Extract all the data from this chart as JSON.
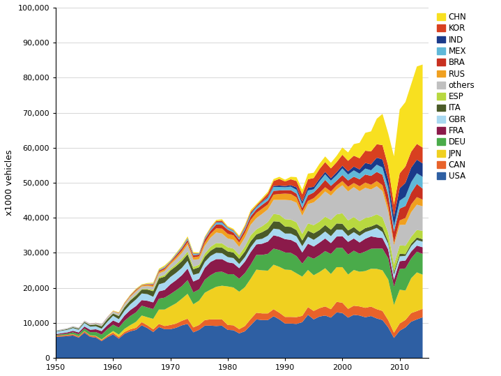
{
  "years": [
    1950,
    1951,
    1952,
    1953,
    1954,
    1955,
    1956,
    1957,
    1958,
    1959,
    1960,
    1961,
    1962,
    1963,
    1964,
    1965,
    1966,
    1967,
    1968,
    1969,
    1970,
    1971,
    1972,
    1973,
    1974,
    1975,
    1976,
    1977,
    1978,
    1979,
    1980,
    1981,
    1982,
    1983,
    1984,
    1985,
    1986,
    1987,
    1988,
    1989,
    1990,
    1991,
    1992,
    1993,
    1994,
    1995,
    1996,
    1997,
    1998,
    1999,
    2000,
    2001,
    2002,
    2003,
    2004,
    2005,
    2006,
    2007,
    2008,
    2009,
    2010,
    2011,
    2012,
    2013,
    2014
  ],
  "series": {
    "USA": [
      6000,
      6100,
      6200,
      6400,
      5800,
      7200,
      6000,
      5800,
      4800,
      5900,
      6700,
      5500,
      6900,
      7600,
      8000,
      9300,
      8500,
      7400,
      8800,
      8200,
      8200,
      8600,
      9300,
      9700,
      7300,
      8000,
      9200,
      9200,
      9100,
      9200,
      8000,
      7900,
      7000,
      7600,
      9300,
      11000,
      10800,
      10800,
      11900,
      11000,
      9800,
      9800,
      9700,
      10200,
      12300,
      11000,
      11800,
      12100,
      11500,
      13000,
      12800,
      11500,
      12300,
      12100,
      11600,
      11950,
      11260,
      10800,
      8700,
      5700,
      7760,
      8700,
      10330,
      11000,
      11600
    ],
    "CAN": [
      300,
      310,
      320,
      340,
      300,
      400,
      350,
      360,
      300,
      400,
      500,
      450,
      500,
      560,
      600,
      900,
      800,
      750,
      900,
      900,
      1200,
      1200,
      1300,
      1500,
      1400,
      1400,
      1600,
      1800,
      1900,
      1800,
      1400,
      1400,
      1200,
      1500,
      1800,
      1900,
      1900,
      1900,
      2000,
      1900,
      1900,
      1900,
      1950,
      1800,
      2200,
      2400,
      2400,
      2600,
      2400,
      3000,
      2960,
      2500,
      2600,
      2600,
      2700,
      2700,
      2650,
      2600,
      2080,
      1490,
      2070,
      2136,
      2463,
      2370,
      2400
    ],
    "JPN": [
      30,
      35,
      40,
      50,
      60,
      70,
      90,
      110,
      150,
      200,
      480,
      700,
      900,
      1200,
      1700,
      1900,
      2300,
      3000,
      4100,
      4700,
      5300,
      5800,
      6300,
      7100,
      6600,
      6940,
      7800,
      8500,
      9300,
      9600,
      11000,
      10800,
      10700,
      11100,
      11500,
      12300,
      12300,
      12200,
      12700,
      13100,
      13500,
      13400,
      12500,
      11200,
      10600,
      10200,
      10300,
      10900,
      10050,
      9900,
      10150,
      9800,
      10200,
      9900,
      10500,
      10800,
      11500,
      11600,
      11600,
      7900,
      9630,
      8400,
      9943,
      11040,
      9775
    ],
    "DEU": [
      200,
      280,
      350,
      500,
      600,
      700,
      900,
      1100,
      1400,
      1700,
      1800,
      2000,
      2300,
      2600,
      2700,
      2800,
      2800,
      2800,
      3100,
      3400,
      3500,
      3700,
      3600,
      3900,
      3400,
      3200,
      3700,
      4100,
      4200,
      4000,
      3500,
      3800,
      3700,
      4000,
      4000,
      4200,
      4400,
      4800,
      4600,
      4800,
      4900,
      4900,
      4900,
      3700,
      3900,
      4700,
      4800,
      4900,
      5730,
      5530,
      5500,
      5700,
      5490,
      5150,
      5570,
      5700,
      5820,
      6200,
      6045,
      5200,
      5910,
      6310,
      5649,
      5908,
      5905
    ],
    "FRA": [
      250,
      300,
      360,
      450,
      500,
      600,
      700,
      800,
      1000,
      1100,
      1200,
      1300,
      1500,
      1700,
      1800,
      1600,
      1900,
      1900,
      2100,
      2200,
      2800,
      2900,
      3100,
      3300,
      3100,
      3000,
      3400,
      3800,
      3700,
      3600,
      3400,
      3100,
      3000,
      3300,
      3600,
      3000,
      3200,
      3500,
      3800,
      3800,
      3800,
      3700,
      3800,
      3200,
      3600,
      3500,
      3600,
      3600,
      3100,
      3200,
      3350,
      3620,
      3500,
      3200,
      3650,
      3550,
      3170,
      3000,
      2500,
      2050,
      2230,
      2250,
      1967,
      1740,
      1900
    ],
    "GBR": [
      700,
      720,
      740,
      780,
      800,
      1000,
      900,
      860,
      700,
      1000,
      1350,
      1100,
      1400,
      1650,
      1900,
      1900,
      1900,
      1600,
      2000,
      2100,
      2100,
      2100,
      2100,
      2200,
      1900,
      1650,
      1700,
      1700,
      1800,
      1700,
      1500,
      1500,
      1200,
      1300,
      1400,
      1350,
      1400,
      1700,
      1900,
      2100,
      1600,
      1800,
      1850,
      1800,
      2000,
      1900,
      1900,
      2000,
      1977,
      1990,
      1820,
      1690,
      1820,
      1900,
      1900,
      1780,
      2700,
      1750,
      1650,
      1450,
      1393,
      1343,
      1576,
      1600,
      1599
    ],
    "ITA": [
      130,
      160,
      200,
      250,
      280,
      300,
      400,
      500,
      650,
      750,
      650,
      900,
      1000,
      1100,
      1100,
      1100,
      1300,
      1600,
      1700,
      1700,
      1850,
      1900,
      1950,
      1900,
      1600,
      1700,
      1500,
      1500,
      1600,
      1600,
      1600,
      1600,
      1500,
      1600,
      1700,
      1500,
      1900,
      1900,
      2100,
      2200,
      2000,
      1900,
      1800,
      1600,
      1700,
      1850,
      1700,
      1820,
      1850,
      1760,
      1740,
      1580,
      1430,
      1150,
      1140,
      1040,
      1110,
      1280,
      660,
      700,
      760,
      485,
      672,
      720,
      700
    ],
    "ESP": [
      10,
      12,
      15,
      20,
      25,
      30,
      40,
      50,
      70,
      100,
      70,
      100,
      150,
      180,
      250,
      180,
      200,
      350,
      400,
      500,
      500,
      600,
      700,
      800,
      700,
      700,
      900,
      1100,
      1200,
      1200,
      1200,
      1100,
      1100,
      1400,
      1700,
      1450,
      1700,
      2000,
      2100,
      2000,
      2100,
      2100,
      2200,
      1900,
      2100,
      2350,
      2400,
      2400,
      2800,
      2600,
      2970,
      2850,
      2900,
      3000,
      2900,
      2760,
      2800,
      2900,
      2540,
      2170,
      2390,
      2400,
      1979,
      2163,
      2400
    ],
    "others": [
      200,
      230,
      250,
      280,
      290,
      300,
      350,
      400,
      450,
      480,
      500,
      600,
      700,
      800,
      900,
      700,
      800,
      900,
      1000,
      1100,
      1200,
      1400,
      1600,
      1900,
      2000,
      1600,
      2200,
      2600,
      3000,
      2800,
      2500,
      2500,
      2300,
      2600,
      3000,
      3200,
      3500,
      3600,
      4000,
      4200,
      5500,
      5500,
      5600,
      5200,
      5500,
      6500,
      6900,
      7200,
      6900,
      7100,
      8000,
      8300,
      8500,
      8600,
      8600,
      7800,
      8000,
      7500,
      6000,
      5500,
      5800,
      6000,
      7000,
      7200,
      7000
    ],
    "RUS": [
      0,
      0,
      0,
      0,
      0,
      0,
      0,
      0,
      0,
      0,
      100,
      150,
      200,
      250,
      300,
      300,
      350,
      400,
      450,
      500,
      500,
      600,
      700,
      700,
      700,
      800,
      900,
      1100,
      1200,
      1400,
      1300,
      1300,
      1200,
      1300,
      1400,
      1500,
      1500,
      1400,
      1500,
      1700,
      1800,
      1800,
      1500,
      1200,
      900,
      1200,
      1300,
      1200,
      1200,
      1150,
      1200,
      1320,
      1200,
      1400,
      1500,
      1350,
      1470,
      1660,
      1470,
      720,
      1300,
      1928,
      2230,
      2170,
      1900
    ],
    "BRA": [
      0,
      0,
      0,
      0,
      0,
      20,
      30,
      40,
      50,
      60,
      50,
      80,
      150,
      200,
      250,
      100,
      200,
      300,
      350,
      400,
      300,
      500,
      600,
      700,
      600,
      500,
      900,
      900,
      1100,
      1100,
      1200,
      800,
      850,
      900,
      1000,
      1000,
      1100,
      1100,
      1100,
      1000,
      1000,
      1100,
      1100,
      1000,
      1600,
      1630,
      1800,
      2100,
      1600,
      1350,
      1700,
      1800,
      1800,
      2000,
      2300,
      2530,
      2612,
      2970,
      3220,
      3183,
      3382,
      3406,
      3343,
      3740,
      3146
    ],
    "MEX": [
      0,
      0,
      0,
      0,
      0,
      0,
      0,
      0,
      0,
      0,
      20,
      30,
      50,
      80,
      100,
      70,
      100,
      200,
      200,
      250,
      200,
      300,
      350,
      400,
      350,
      300,
      400,
      450,
      500,
      600,
      500,
      450,
      400,
      450,
      600,
      600,
      700,
      800,
      1100,
      1000,
      820,
      1000,
      1100,
      1100,
      1400,
      900,
      1500,
      1600,
      1500,
      1600,
      1900,
      1700,
      1800,
      1600,
      1700,
      1600,
      2070,
      2100,
      2170,
      1560,
      2260,
      2680,
      3001,
      3060,
      3365
    ],
    "IND": [
      0,
      0,
      0,
      0,
      0,
      0,
      0,
      0,
      0,
      0,
      0,
      0,
      0,
      0,
      10,
      10,
      20,
      30,
      50,
      80,
      30,
      50,
      80,
      100,
      100,
      50,
      80,
      100,
      150,
      200,
      100,
      100,
      150,
      200,
      300,
      150,
      200,
      250,
      300,
      400,
      350,
      400,
      700,
      700,
      800,
      700,
      700,
      700,
      700,
      800,
      800,
      900,
      1100,
      1200,
      1600,
      1700,
      2000,
      2300,
      2315,
      2630,
      3537,
      3936,
      4145,
      3880,
      3840
    ],
    "KOR": [
      0,
      0,
      0,
      0,
      0,
      0,
      0,
      0,
      0,
      0,
      0,
      0,
      0,
      0,
      0,
      0,
      0,
      0,
      0,
      30,
      30,
      40,
      60,
      100,
      100,
      50,
      100,
      200,
      300,
      400,
      120,
      150,
      200,
      300,
      400,
      370,
      600,
      1000,
      1400,
      1900,
      1300,
      1700,
      1800,
      2100,
      2400,
      2530,
      2800,
      2800,
      2800,
      2900,
      3100,
      3000,
      3100,
      3200,
      3500,
      3700,
      3840,
      4100,
      3827,
      3513,
      4272,
      4657,
      4558,
      4515,
      4524
    ],
    "CHN": [
      0,
      0,
      0,
      0,
      0,
      0,
      0,
      0,
      0,
      0,
      100,
      120,
      130,
      150,
      180,
      150,
      200,
      250,
      300,
      350,
      200,
      250,
      300,
      400,
      350,
      200,
      250,
      300,
      350,
      400,
      300,
      350,
      400,
      450,
      500,
      400,
      450,
      500,
      550,
      600,
      500,
      700,
      1100,
      1300,
      1600,
      1500,
      1500,
      1600,
      1600,
      1800,
      2100,
      2400,
      3300,
      4400,
      5100,
      5710,
      7280,
      8900,
      9300,
      13791,
      18265,
      18418,
      19272,
      22100,
      23700
    ]
  },
  "colors": {
    "USA": "#2e5fa3",
    "CAN": "#e8622a",
    "JPN": "#f0d020",
    "DEU": "#4aab4a",
    "FRA": "#8b1a4a",
    "GBR": "#a8d8f0",
    "ITA": "#4a5a28",
    "ESP": "#b8d840",
    "others": "#c0c0c0",
    "RUS": "#f0a020",
    "BRA": "#c83020",
    "MEX": "#60b8d8",
    "IND": "#1a3a8a",
    "KOR": "#d84020",
    "CHN": "#f8e020"
  },
  "legend_order": [
    "CHN",
    "KOR",
    "IND",
    "MEX",
    "BRA",
    "RUS",
    "others",
    "ESP",
    "ITA",
    "GBR",
    "FRA",
    "DEU",
    "JPN",
    "CAN",
    "USA"
  ],
  "stack_order": [
    "USA",
    "CAN",
    "JPN",
    "DEU",
    "FRA",
    "GBR",
    "ITA",
    "ESP",
    "others",
    "RUS",
    "BRA",
    "MEX",
    "IND",
    "KOR",
    "CHN"
  ],
  "ylabel": "x1000 vehicles",
  "ylim": [
    0,
    100000
  ],
  "yticks": [
    0,
    10000,
    20000,
    30000,
    40000,
    50000,
    60000,
    70000,
    80000,
    90000,
    100000
  ],
  "xlim": [
    1950,
    2015
  ],
  "xticks": [
    1950,
    1960,
    1970,
    1980,
    1990,
    2000,
    2010
  ]
}
